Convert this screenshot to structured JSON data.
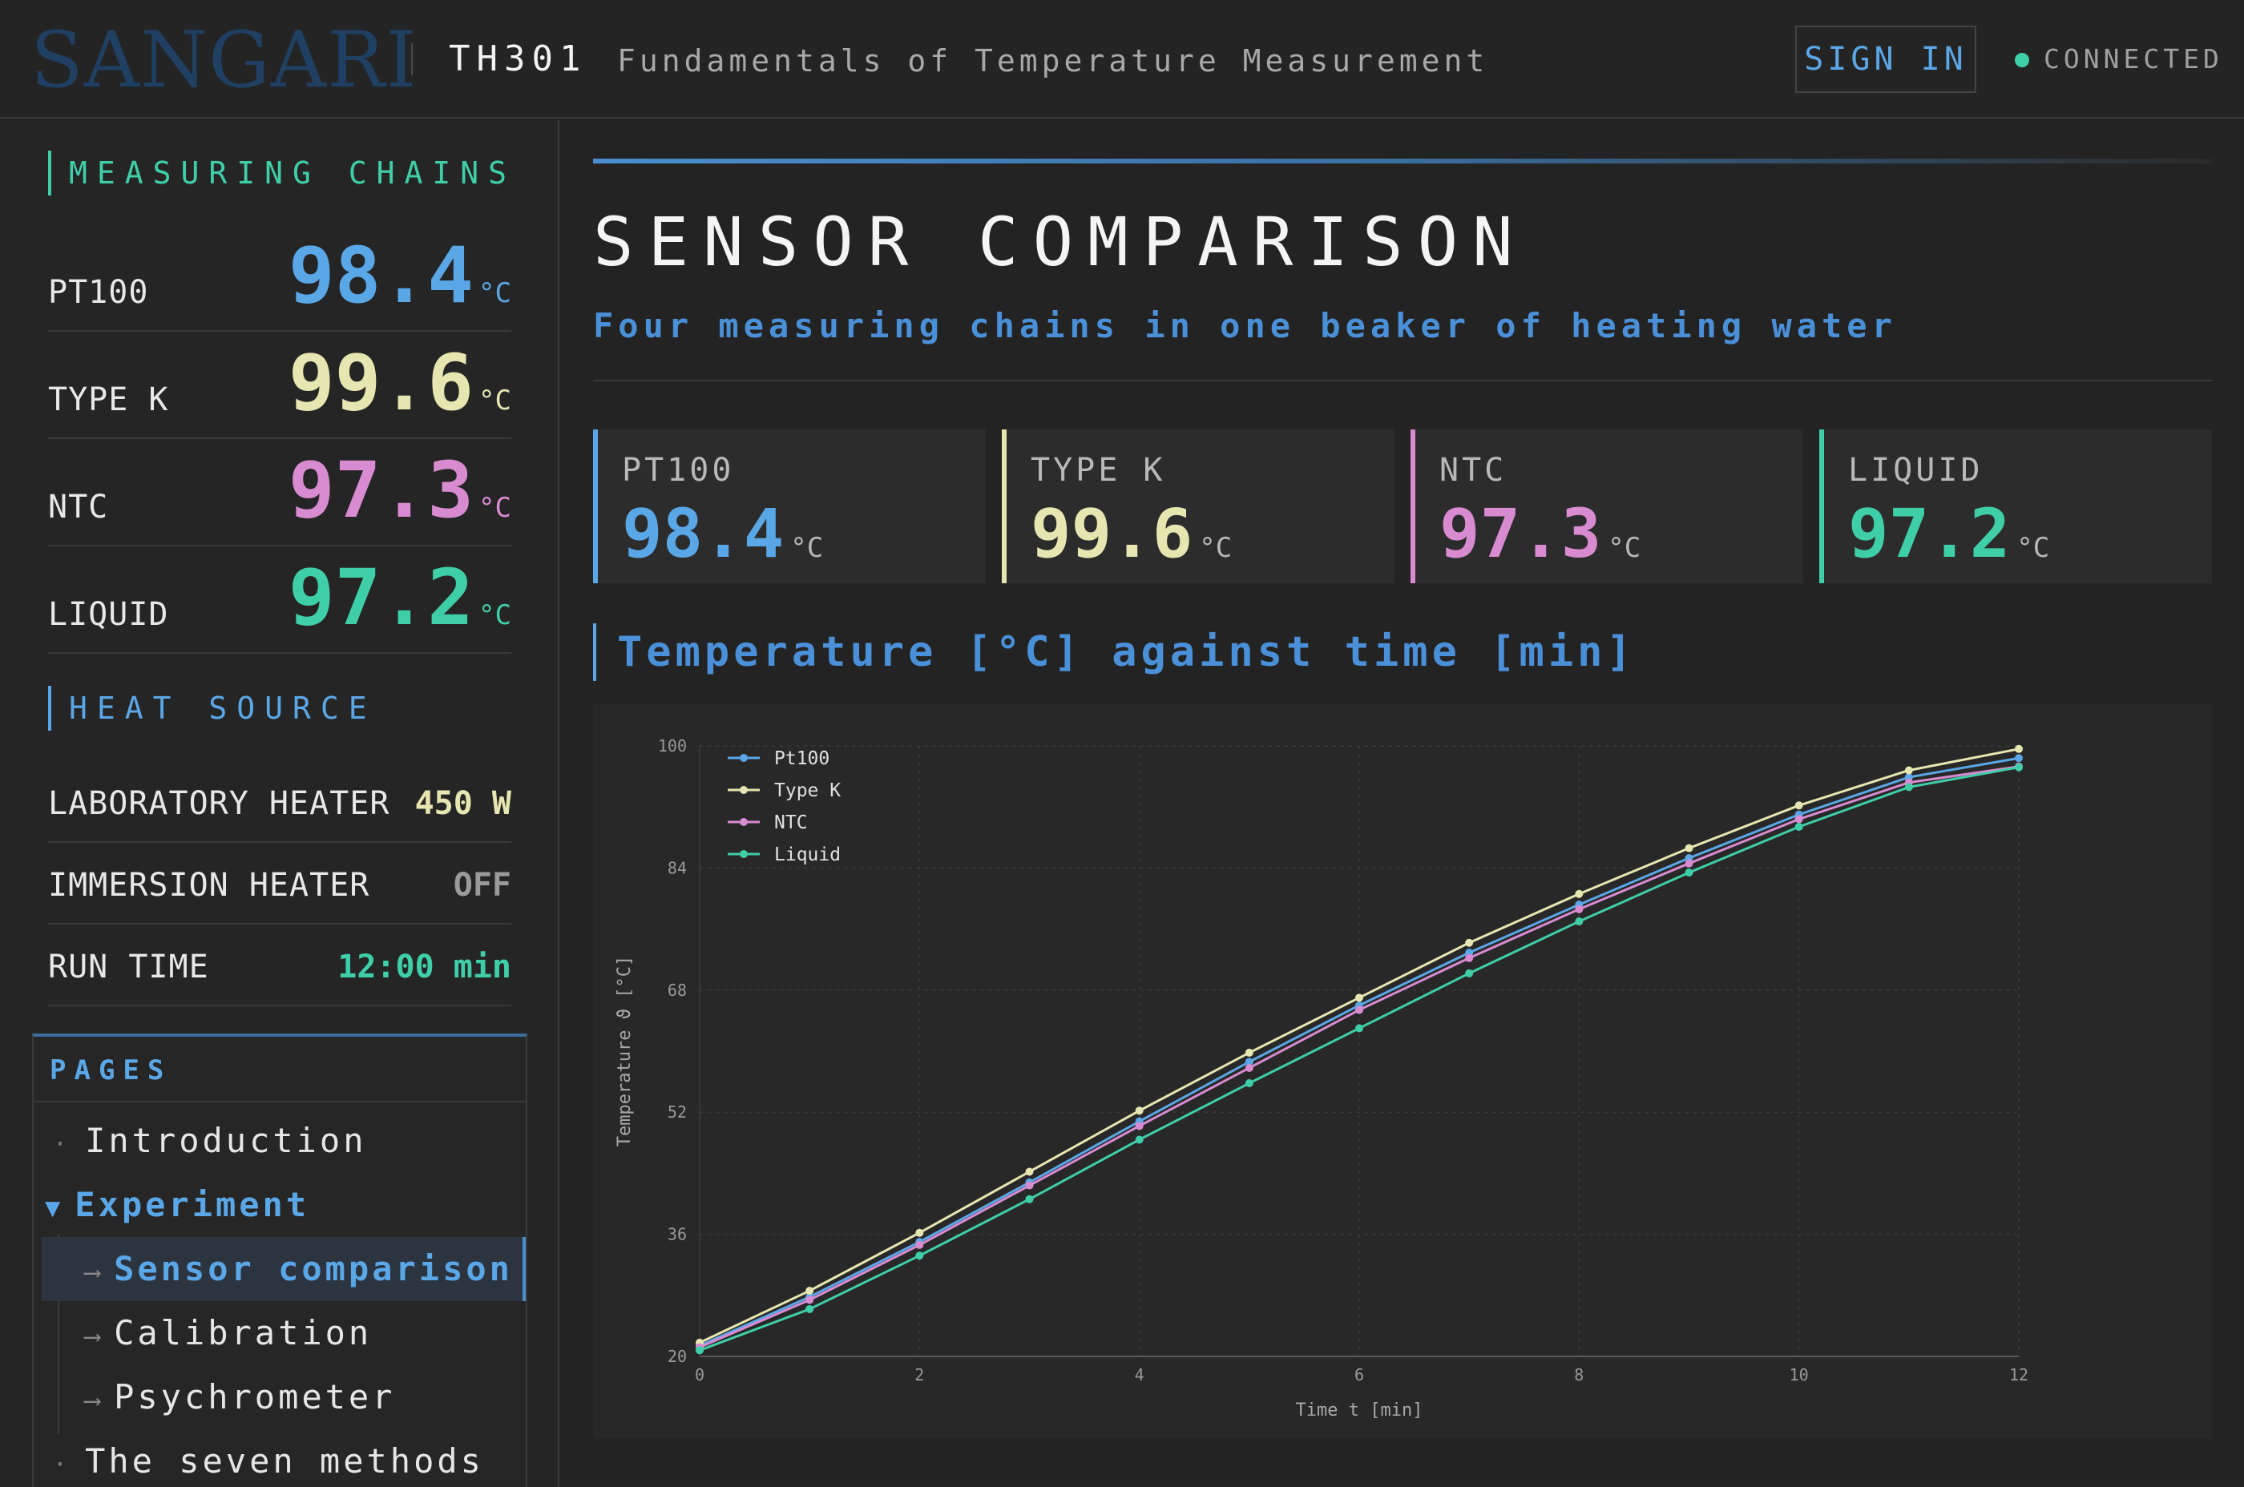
{
  "header": {
    "brand": "SANGARI",
    "course_code": "TH301",
    "course_title": "Fundamentals of Temperature Measurement",
    "sign_in": "SIGN IN",
    "status": "CONNECTED"
  },
  "sidebar": {
    "chains_heading": "MEASURING CHAINS",
    "chains": [
      {
        "label": "PT100",
        "value": "98.4",
        "unit": "°C",
        "color": "#5aa7e8"
      },
      {
        "label": "TYPE K",
        "value": "99.6",
        "unit": "°C",
        "color": "#e6e6b0"
      },
      {
        "label": "NTC",
        "value": "97.3",
        "unit": "°C",
        "color": "#d98bd1"
      },
      {
        "label": "LIQUID",
        "value": "97.2",
        "unit": "°C",
        "color": "#3fcfa8"
      }
    ],
    "heat_heading": "HEAT SOURCE",
    "heat": [
      {
        "label": "LABORATORY HEATER",
        "value": "450 W",
        "color": "#e6e6b0"
      },
      {
        "label": "IMMERSION HEATER",
        "value": "OFF",
        "color": "#9a9a9a"
      },
      {
        "label": "RUN TIME",
        "value": "12:00 min",
        "color": "#3fcfa8"
      }
    ],
    "pages_heading": "PAGES",
    "pages": {
      "introduction": "Introduction",
      "experiment": "Experiment",
      "sensor_comparison": "Sensor comparison",
      "calibration": "Calibration",
      "psychrometer": "Psychrometer",
      "seven_methods": "The seven methods"
    }
  },
  "main": {
    "title": "SENSOR COMPARISON",
    "subtitle": "Four measuring chains in one beaker of heating water",
    "cards": [
      {
        "label": "PT100",
        "value": "98.4",
        "unit": "°C",
        "color": "#5aa7e8"
      },
      {
        "label": "TYPE K",
        "value": "99.6",
        "unit": "°C",
        "color": "#e6e6b0"
      },
      {
        "label": "NTC",
        "value": "97.3",
        "unit": "°C",
        "color": "#d98bd1"
      },
      {
        "label": "LIQUID",
        "value": "97.2",
        "unit": "°C",
        "color": "#3fcfa8"
      }
    ],
    "chart_heading": "Temperature [°C] against time [min]"
  },
  "chart_data": {
    "type": "line",
    "x": [
      0,
      1,
      2,
      3,
      4,
      5,
      6,
      7,
      8,
      9,
      10,
      11,
      12
    ],
    "xlabel": "Time t [min]",
    "ylabel": "Temperature ϑ [°C]",
    "xlim": [
      0,
      12
    ],
    "ylim": [
      20,
      100
    ],
    "xticks": [
      0,
      2,
      4,
      6,
      8,
      10,
      12
    ],
    "yticks": [
      20,
      36,
      52,
      68,
      84,
      100
    ],
    "grid": true,
    "legend": "top-left",
    "series": [
      {
        "name": "Pt100",
        "color": "#5aa7e8",
        "values": [
          21.4,
          27.8,
          35.0,
          42.8,
          50.8,
          58.6,
          66.0,
          72.9,
          79.2,
          85.3,
          91.0,
          95.9,
          98.4
        ]
      },
      {
        "name": "Type K",
        "color": "#e6e6b0",
        "values": [
          21.8,
          28.6,
          36.2,
          44.2,
          52.2,
          59.8,
          67.0,
          74.2,
          80.6,
          86.6,
          92.2,
          96.8,
          99.6
        ]
      },
      {
        "name": "NTC",
        "color": "#d98bd1",
        "values": [
          21.2,
          27.4,
          34.6,
          42.4,
          50.2,
          57.8,
          65.4,
          72.2,
          78.6,
          84.6,
          90.4,
          95.2,
          97.3
        ]
      },
      {
        "name": "Liquid",
        "color": "#3fcfa8",
        "values": [
          20.8,
          26.2,
          33.2,
          40.6,
          48.4,
          55.8,
          63.0,
          70.2,
          77.0,
          83.4,
          89.4,
          94.6,
          97.2
        ]
      }
    ]
  }
}
